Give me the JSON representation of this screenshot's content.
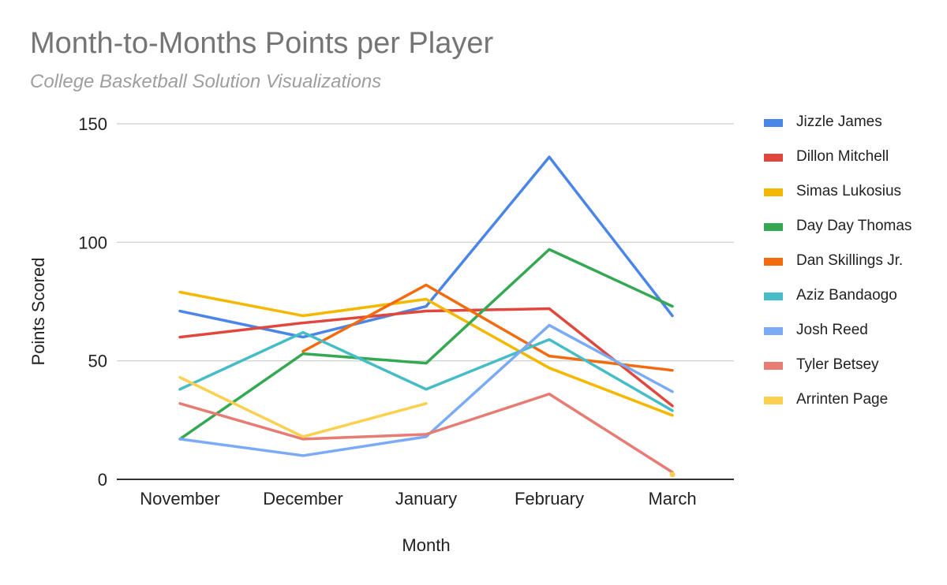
{
  "title": "Month-to-Months Points per Player",
  "subtitle": "College Basketball Solution Visualizations",
  "chart_data": {
    "type": "line",
    "title": "Month-to-Months Points per Player",
    "subtitle": "College Basketball Solution Visualizations",
    "xlabel": "Month",
    "ylabel": "Points Scored",
    "categories": [
      "November",
      "December",
      "January",
      "February",
      "March"
    ],
    "ylim": [
      0,
      150
    ],
    "yticks": [
      0,
      50,
      100,
      150
    ],
    "grid": true,
    "legend_position": "right",
    "series": [
      {
        "name": "Jizzle James",
        "color": "#4a86e8",
        "values": [
          71,
          60,
          73,
          136,
          69
        ]
      },
      {
        "name": "Dillon Mitchell",
        "color": "#e0483e",
        "values": [
          60,
          66,
          71,
          72,
          31
        ]
      },
      {
        "name": "Simas Lukosius",
        "color": "#f5b800",
        "values": [
          79,
          69,
          76,
          47,
          27
        ]
      },
      {
        "name": "Day Day Thomas",
        "color": "#34a853",
        "values": [
          17,
          53,
          49,
          97,
          73
        ]
      },
      {
        "name": "Dan Skillings Jr.",
        "color": "#f26b0f",
        "values": [
          null,
          54,
          82,
          52,
          46
        ]
      },
      {
        "name": "Aziz Bandaogo",
        "color": "#46bdc6",
        "values": [
          38,
          62,
          38,
          59,
          29
        ]
      },
      {
        "name": "Josh Reed",
        "color": "#7baaf7",
        "values": [
          17,
          10,
          18,
          65,
          37
        ]
      },
      {
        "name": "Tyler Betsey",
        "color": "#e67c73",
        "values": [
          32,
          17,
          19,
          36,
          3
        ]
      },
      {
        "name": "Arrinten Page",
        "color": "#fcd04f",
        "values": [
          43,
          18,
          32,
          null,
          2
        ]
      }
    ]
  }
}
